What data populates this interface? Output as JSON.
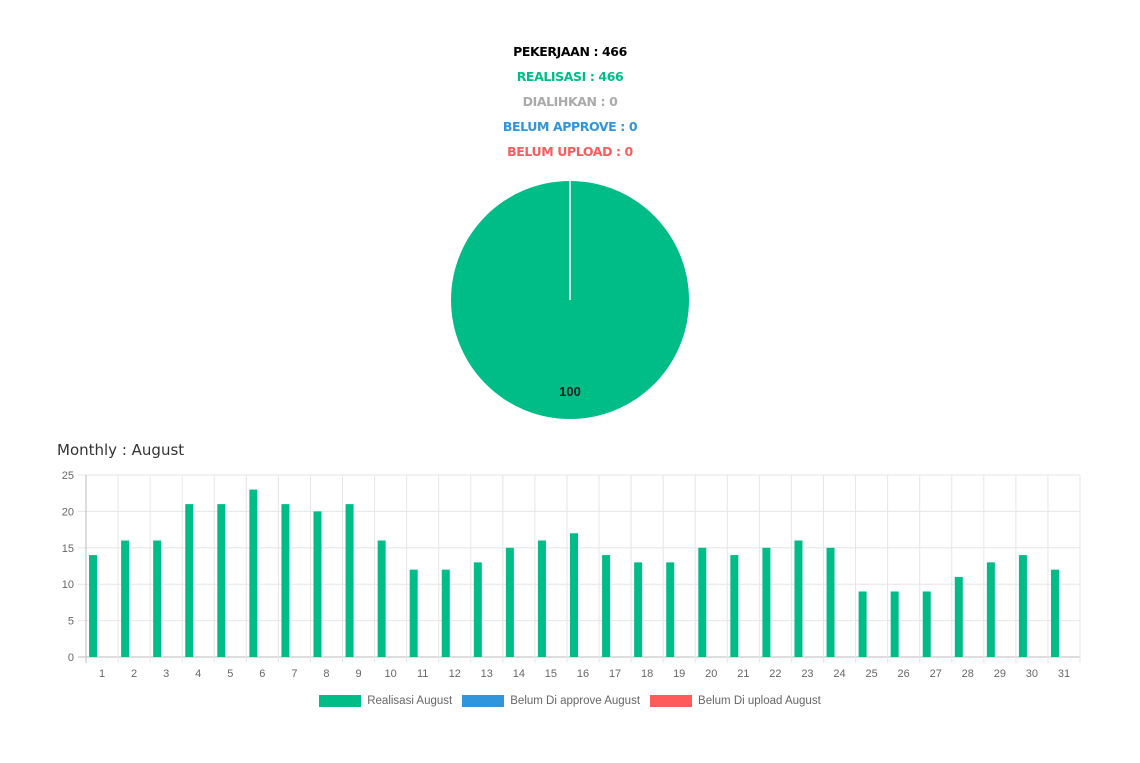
{
  "summary": {
    "pekerjaan": "PEKERJAAN : 466",
    "realisasi": "REALISASI : 466",
    "dialihkan": "DIALIHKAN : 0",
    "belum_approve": "BELUM APPROVE : 0",
    "belum_upload": "BELUM UPLOAD : 0"
  },
  "colors": {
    "realisasi": "#00bd88",
    "dialihkan": "#aaaaaa",
    "belum_approve": "#2f95dc",
    "belum_upload": "#ff5b5b",
    "pekerjaan": "#000000"
  },
  "monthly_title": "Monthly : August",
  "chart_data": [
    {
      "type": "pie",
      "slices": [
        {
          "value": 100,
          "color": "#00bd88"
        },
        {
          "value": 0,
          "color": "#aaaaaa"
        },
        {
          "value": 0,
          "color": "#2f95dc"
        },
        {
          "value": 0,
          "color": "#ff5b5b"
        }
      ],
      "data_label": "100"
    },
    {
      "type": "bar",
      "categories": [
        "1",
        "2",
        "3",
        "4",
        "5",
        "6",
        "7",
        "8",
        "9",
        "10",
        "11",
        "12",
        "13",
        "14",
        "15",
        "16",
        "17",
        "18",
        "19",
        "20",
        "21",
        "22",
        "23",
        "24",
        "25",
        "26",
        "27",
        "28",
        "29",
        "30",
        "31"
      ],
      "series": [
        {
          "name": "Realisasi August",
          "color": "#00bd88",
          "values": [
            14,
            16,
            16,
            21,
            21,
            23,
            21,
            20,
            21,
            16,
            12,
            12,
            13,
            15,
            16,
            17,
            14,
            13,
            13,
            15,
            14,
            15,
            16,
            15,
            9,
            9,
            9,
            11,
            13,
            14,
            12
          ]
        },
        {
          "name": "Belum Di approve August",
          "color": "#2f95dc",
          "values": [
            0,
            0,
            0,
            0,
            0,
            0,
            0,
            0,
            0,
            0,
            0,
            0,
            0,
            0,
            0,
            0,
            0,
            0,
            0,
            0,
            0,
            0,
            0,
            0,
            0,
            0,
            0,
            0,
            0,
            0,
            0
          ]
        },
        {
          "name": "Belum Di upload August",
          "color": "#ff5b5b",
          "values": [
            0,
            0,
            0,
            0,
            0,
            0,
            0,
            0,
            0,
            0,
            0,
            0,
            0,
            0,
            0,
            0,
            0,
            0,
            0,
            0,
            0,
            0,
            0,
            0,
            0,
            0,
            0,
            0,
            0,
            0,
            0
          ]
        }
      ],
      "yticks": [
        "0",
        "5",
        "10",
        "15",
        "20",
        "25"
      ],
      "ylim": [
        0,
        25
      ],
      "grid": true,
      "legend_position": "bottom"
    }
  ]
}
